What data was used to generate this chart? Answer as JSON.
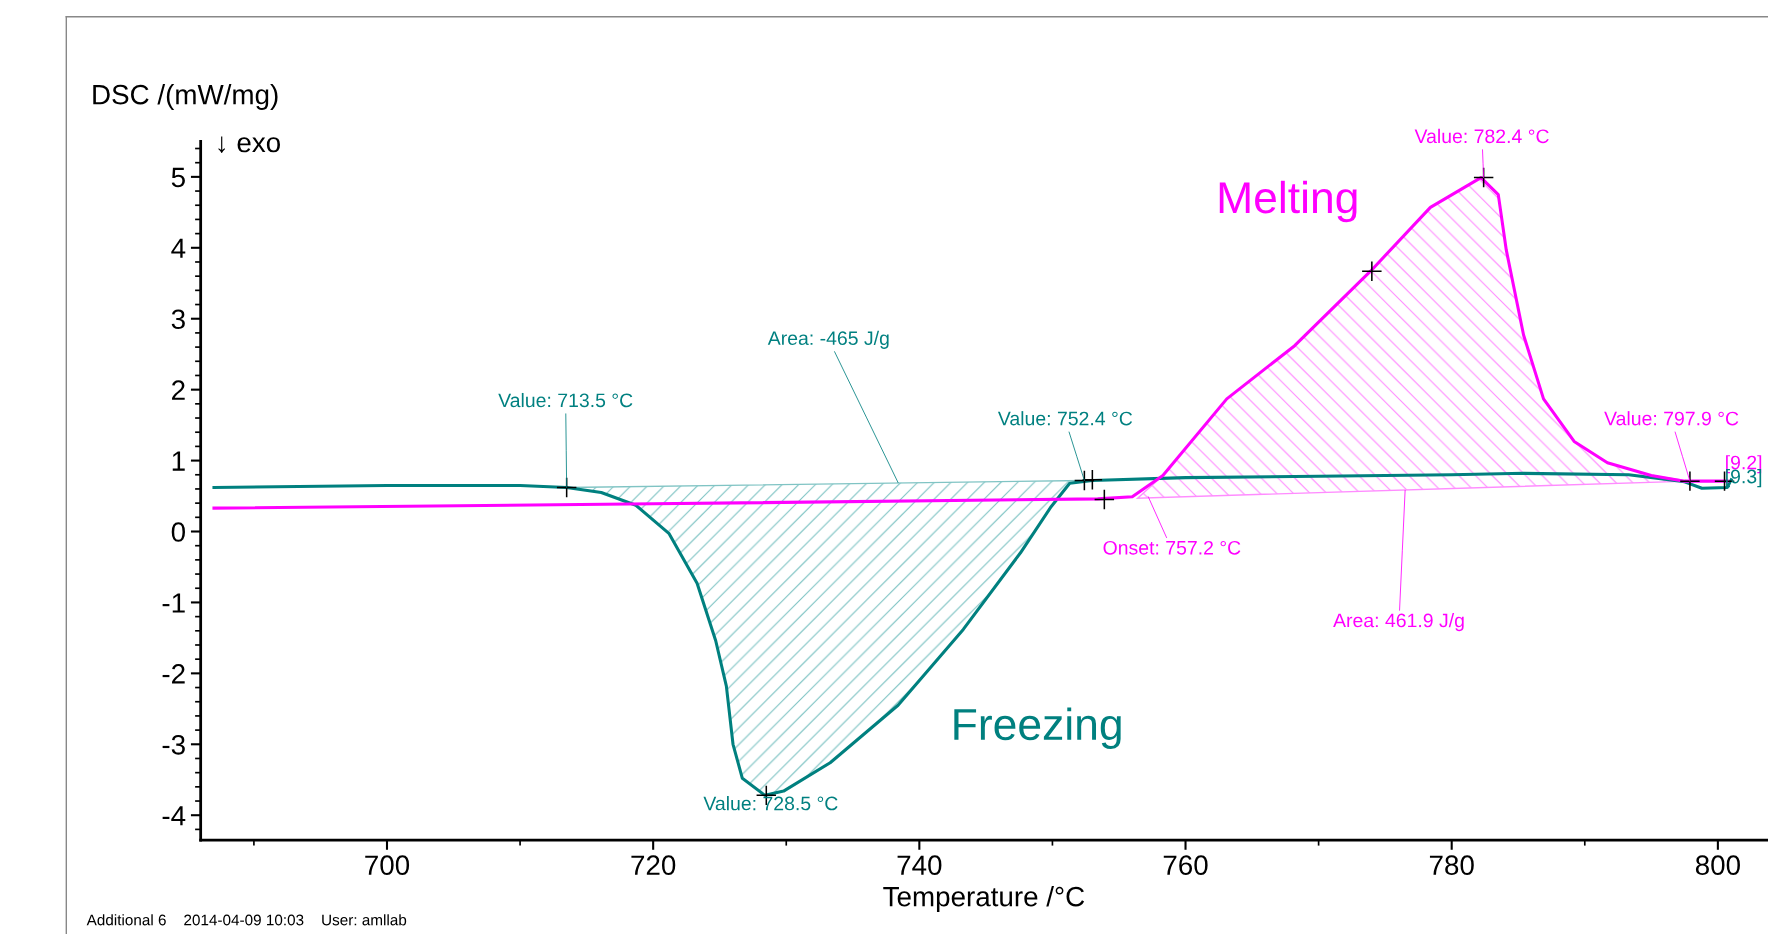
{
  "chart_data": {
    "type": "line",
    "xlabel": "Temperature /°C",
    "ylabel": "DSC /(mW/mg)",
    "xlim": [
      686,
      803.7
    ],
    "ylim": [
      -4.35,
      5.5
    ],
    "xticks": [
      {
        "value": 690,
        "label": null
      },
      700,
      {
        "value": 710,
        "label": null
      },
      720,
      {
        "value": 730,
        "label": null
      },
      740,
      {
        "value": 750,
        "label": null
      },
      760,
      {
        "value": 770,
        "label": null
      },
      780,
      {
        "value": 790,
        "label": null
      },
      800
    ],
    "yticks": [
      -4,
      -3,
      -2,
      -1,
      0,
      1,
      2,
      3,
      4,
      5,
      {
        "value": -4.2,
        "label": null
      },
      {
        "value": -3.8,
        "label": null
      },
      {
        "value": -3.6,
        "label": null
      },
      {
        "value": -3.4,
        "label": null
      },
      {
        "value": -3.2,
        "label": null
      },
      {
        "value": -2.8,
        "label": null
      },
      {
        "value": -2.6,
        "label": null
      },
      {
        "value": -2.4,
        "label": null
      },
      {
        "value": -2.2,
        "label": null
      },
      {
        "value": -1.8,
        "label": null
      },
      {
        "value": -1.6,
        "label": null
      },
      {
        "value": -1.4,
        "label": null
      },
      {
        "value": -1.2,
        "label": null
      },
      {
        "value": -0.8,
        "label": null
      },
      {
        "value": -0.6,
        "label": null
      },
      {
        "value": -0.4,
        "label": null
      },
      {
        "value": -0.2,
        "label": null
      },
      {
        "value": 0.2,
        "label": null
      },
      {
        "value": 0.4,
        "label": null
      },
      {
        "value": 0.6,
        "label": null
      },
      {
        "value": 0.8,
        "label": null
      },
      {
        "value": 1.2,
        "label": null
      },
      {
        "value": 1.4,
        "label": null
      },
      {
        "value": 1.6,
        "label": null
      },
      {
        "value": 1.8,
        "label": null
      },
      {
        "value": 2.2,
        "label": null
      },
      {
        "value": 2.4,
        "label": null
      },
      {
        "value": 2.6,
        "label": null
      },
      {
        "value": 2.8,
        "label": null
      },
      {
        "value": 3.2,
        "label": null
      },
      {
        "value": 3.4,
        "label": null
      },
      {
        "value": 3.6,
        "label": null
      },
      {
        "value": 3.8,
        "label": null
      },
      {
        "value": 4.2,
        "label": null
      },
      {
        "value": 4.4,
        "label": null
      },
      {
        "value": 4.6,
        "label": null
      },
      {
        "value": 4.8,
        "label": null
      },
      {
        "value": 5.2,
        "label": null
      },
      {
        "value": 5.4,
        "label": null
      }
    ],
    "grid": false,
    "legend": false,
    "series": [
      {
        "type": "area",
        "color": "#80c4c4",
        "x": [
          713.5,
          716.1,
          718.7,
          721.2,
          723.3,
          724.7,
          725.5,
          726.0,
          726.7,
          728.4,
          729.8,
          733.3,
          738.4,
          743.3,
          747.6,
          749.9,
          751.3,
          752.4
        ],
        "values": [
          0.62,
          0.55,
          0.37,
          -0.03,
          -0.73,
          -1.54,
          -2.18,
          -3.0,
          -3.48,
          -3.72,
          -3.66,
          -3.26,
          -2.45,
          -1.38,
          -0.3,
          0.35,
          0.68,
          0.72
        ]
      },
      {
        "type": "area",
        "color": "#ff8cff",
        "x": [
          756.4,
          758.3,
          763.1,
          768.2,
          773.9,
          778.4,
          782.2,
          783.5,
          784.1,
          785.4,
          786.9,
          789.2,
          791.7,
          795.0,
          797.9
        ],
        "values": [
          0.47,
          0.79,
          1.87,
          2.62,
          3.67,
          4.57,
          4.99,
          4.75,
          3.97,
          2.77,
          1.87,
          1.27,
          0.97,
          0.79,
          0.71
        ]
      },
      {
        "name": "Freezing",
        "color": "#00807f",
        "x": [
          687,
          700,
          710,
          713.5,
          716.1,
          718.7,
          721.2,
          723.3,
          724.7,
          725.5,
          726.0,
          726.7,
          728.4,
          729.8,
          733.3,
          738.4,
          743.3,
          747.6,
          749.9,
          751.3,
          753.0,
          760,
          770,
          780,
          785.4,
          793.3,
          797.5,
          798.8,
          800.7,
          801.0
        ],
        "values": [
          0.62,
          0.65,
          0.65,
          0.62,
          0.55,
          0.37,
          -0.03,
          -0.73,
          -1.54,
          -2.18,
          -3.0,
          -3.48,
          -3.72,
          -3.66,
          -3.26,
          -2.45,
          -1.38,
          -0.3,
          0.35,
          0.68,
          0.72,
          0.76,
          0.78,
          0.8,
          0.82,
          0.8,
          0.7,
          0.61,
          0.62,
          0.73
        ]
      },
      {
        "name": "Melting",
        "color": "#ff00ff",
        "x": [
          687,
          720,
          753.4,
          756.0,
          758.3,
          763.1,
          768.2,
          773.9,
          778.4,
          782.2,
          783.5,
          784.1,
          785.4,
          786.9,
          789.2,
          791.7,
          795.0,
          797.5,
          800.7
        ],
        "values": [
          0.33,
          0.39,
          0.46,
          0.49,
          0.79,
          1.87,
          2.62,
          3.67,
          4.57,
          4.99,
          4.75,
          3.97,
          2.77,
          1.87,
          1.27,
          0.97,
          0.79,
          0.71,
          0.71
        ]
      },
      {
        "type": "scatter",
        "marker": "cross",
        "color": "#000000",
        "x": [
          713.5,
          728.5,
          752.4,
          753.0,
          753.9,
          774.0,
          782.4,
          797.9,
          800.5
        ],
        "values": [
          0.62,
          -3.72,
          0.72,
          0.73,
          0.45,
          3.67,
          4.99,
          0.71,
          0.71
        ]
      }
    ],
    "annotations": [
      {
        "text": "Value: 713.5 °C",
        "x": 713.5,
        "y": 0.62
      },
      {
        "text": "Area: -465 J/g",
        "x": 738.4,
        "y": 0.69
      },
      {
        "text": "Value: 752.4 °C",
        "x": 752.4,
        "y": 0.72
      },
      {
        "text": "Value: 728.5 °C",
        "x": 728.5,
        "y": -3.72
      },
      {
        "text": "Onset: 757.2 °C",
        "x": 757.2,
        "y": 0.49
      },
      {
        "text": "Area: 461.9 J/g",
        "x": 776.5,
        "y": 0.58
      },
      {
        "text": "Value: 782.4 °C",
        "x": 782.4,
        "y": 4.99
      },
      {
        "text": "Value: 797.9 °C",
        "x": 797.9,
        "y": 0.71
      },
      {
        "text": "[9.2]",
        "x": 800.7,
        "y": 0.71
      },
      {
        "text": "[9.3]",
        "x": 801.0,
        "y": 0.73
      },
      "↓ exo",
      "Additional 6    2014-04-09 10:03    User: amllab"
    ]
  }
}
